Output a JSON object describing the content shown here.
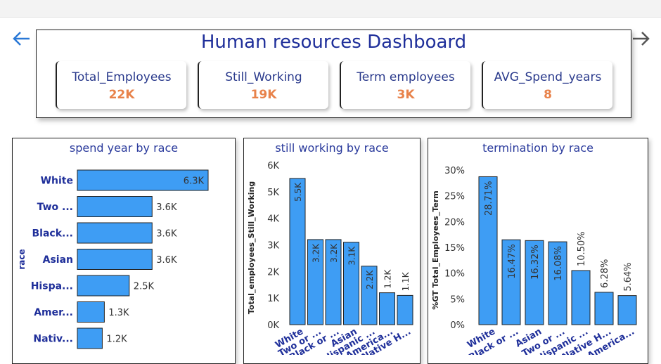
{
  "header": {
    "title": "Human resources Dashboard"
  },
  "nav": {
    "back_icon": "arrow-left-icon",
    "forward_icon": "arrow-right-icon"
  },
  "kpis": [
    {
      "label": "Total_Employees",
      "value": "22K"
    },
    {
      "label": "Still_Working",
      "value": "19K"
    },
    {
      "label": "Term employees",
      "value": "3K"
    },
    {
      "label": "AVG_Spend_years",
      "value": "8"
    }
  ],
  "colors": {
    "bar": "#3e9df4",
    "title": "#1f2f9a",
    "kpi_value": "#e8824a",
    "axis_label": "#1f2f9a"
  },
  "chart_data": [
    {
      "type": "bar",
      "orientation": "horizontal",
      "title": "spend year by race",
      "ylabel": "race",
      "categories": [
        "White",
        "Two ...",
        "Black...",
        "Asian",
        "Hispa...",
        "Amer...",
        "Nativ..."
      ],
      "values": [
        6.3,
        3.6,
        3.6,
        3.6,
        2.5,
        1.3,
        1.2
      ],
      "data_labels": [
        "6.3K",
        "3.6K",
        "3.6K",
        "3.6K",
        "2.5K",
        "1.3K",
        "1.2K"
      ],
      "xlim": [
        0,
        6.3
      ]
    },
    {
      "type": "bar",
      "title": "still working by race",
      "ylabel": "Total_employees_Still_Working",
      "categories": [
        "White",
        "Two or ...",
        "Black or ...",
        "Asian",
        "Hispanic ...",
        "America...",
        "Native H..."
      ],
      "values": [
        5.5,
        3.2,
        3.2,
        3.1,
        2.2,
        1.2,
        1.1
      ],
      "data_labels": [
        "5.5K",
        "3.2K",
        "3.2K",
        "3.1K",
        "2.2K",
        "1.2K",
        "1.1K"
      ],
      "yticks": [
        "0K",
        "1K",
        "2K",
        "3K",
        "4K",
        "5K",
        "6K"
      ],
      "ylim": [
        0,
        6
      ]
    },
    {
      "type": "bar",
      "title": "termination by race",
      "ylabel": "%GT Total_Employees_Term",
      "categories": [
        "White",
        "Black or ...",
        "Asian",
        "Two or ...",
        "Hispanic ...",
        "Native H...",
        "America..."
      ],
      "values": [
        28.71,
        16.47,
        16.32,
        16.08,
        10.5,
        6.28,
        5.64
      ],
      "data_labels": [
        "28.71%",
        "16.47%",
        "16.32%",
        "16.08%",
        "10.50%",
        "6.28%",
        "5.64%"
      ],
      "yticks": [
        "0%",
        "5%",
        "10%",
        "15%",
        "20%",
        "25%",
        "30%"
      ],
      "ylim": [
        0,
        30
      ]
    }
  ]
}
